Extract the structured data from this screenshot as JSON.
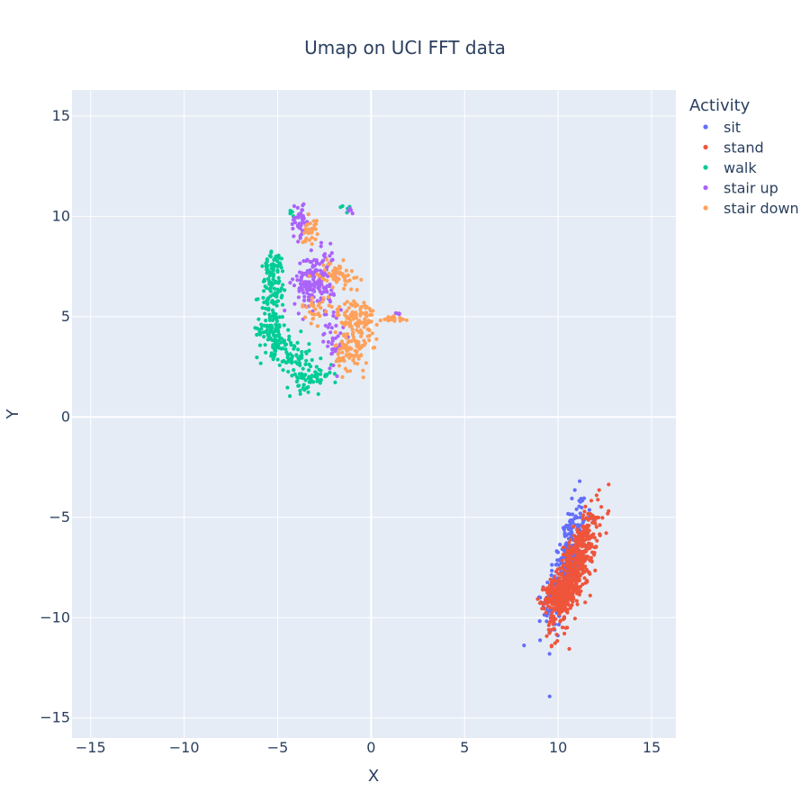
{
  "chart_data": {
    "type": "scatter",
    "title": "Umap on UCI  FFT data",
    "xlabel": "X",
    "ylabel": "Y",
    "xlim": [
      -16,
      16.3
    ],
    "ylim": [
      -16,
      16.3
    ],
    "xticks": [
      -15,
      -10,
      -5,
      0,
      5,
      10,
      15
    ],
    "yticks": [
      -15,
      -10,
      -5,
      0,
      5,
      10,
      15
    ],
    "xtick_labels": [
      "−15",
      "−10",
      "−5",
      "0",
      "5",
      "10",
      "15"
    ],
    "ytick_labels": [
      "−15",
      "−10",
      "−5",
      "0",
      "5",
      "10",
      "15"
    ],
    "grid": true,
    "legend": {
      "title": "Activity",
      "placement": "right"
    },
    "series": [
      {
        "name": "sit",
        "color": "#636efa",
        "clusters": [
          {
            "cx": 10.4,
            "cy": -7.4,
            "sx": 0.55,
            "sy": 1.6,
            "rho": 0.7,
            "n": 320
          }
        ]
      },
      {
        "name": "stand",
        "color": "#EF553B",
        "clusters": [
          {
            "cx": 10.9,
            "cy": -7.6,
            "sx": 0.6,
            "sy": 1.35,
            "rho": 0.75,
            "n": 520
          },
          {
            "cx": 10.0,
            "cy": -8.9,
            "sx": 0.35,
            "sy": 0.45,
            "rho": 0.2,
            "n": 200
          }
        ]
      },
      {
        "name": "walk",
        "color": "#00cc96",
        "clusters": [
          {
            "cx": -5.2,
            "cy": 6.6,
            "sx": 0.35,
            "sy": 0.8,
            "rho": 0.3,
            "n": 90
          },
          {
            "cx": -5.3,
            "cy": 4.4,
            "sx": 0.4,
            "sy": 0.6,
            "rho": 0.0,
            "n": 90
          },
          {
            "cx": -4.3,
            "cy": 3.2,
            "sx": 0.5,
            "sy": 0.5,
            "rho": -0.3,
            "n": 70
          },
          {
            "cx": -3.3,
            "cy": 2.0,
            "sx": 0.6,
            "sy": 0.35,
            "rho": 0.2,
            "n": 70
          },
          {
            "cx": -5.4,
            "cy": 7.5,
            "sx": 0.3,
            "sy": 0.3,
            "rho": 0.0,
            "n": 20
          },
          {
            "cx": -1.3,
            "cy": 10.4,
            "sx": 0.15,
            "sy": 0.1,
            "rho": 0.0,
            "n": 6
          },
          {
            "cx": -4.2,
            "cy": 10.1,
            "sx": 0.1,
            "sy": 0.1,
            "rho": 0.0,
            "n": 5
          }
        ]
      },
      {
        "name": "stair up",
        "color": "#ab63fa",
        "clusters": [
          {
            "cx": -3.8,
            "cy": 9.8,
            "sx": 0.25,
            "sy": 0.45,
            "rho": 0.0,
            "n": 50
          },
          {
            "cx": -3.0,
            "cy": 6.8,
            "sx": 0.55,
            "sy": 0.7,
            "rho": 0.1,
            "n": 180
          },
          {
            "cx": -2.0,
            "cy": 4.0,
            "sx": 0.3,
            "sy": 0.8,
            "rho": 0.0,
            "n": 40
          },
          {
            "cx": -1.1,
            "cy": 10.3,
            "sx": 0.08,
            "sy": 0.08,
            "rho": 0.0,
            "n": 5
          },
          {
            "cx": 1.4,
            "cy": 5.1,
            "sx": 0.08,
            "sy": 0.05,
            "rho": 0.0,
            "n": 4
          }
        ]
      },
      {
        "name": "stair down",
        "color": "#FFA15A",
        "clusters": [
          {
            "cx": -3.3,
            "cy": 9.4,
            "sx": 0.2,
            "sy": 0.4,
            "rho": 0.0,
            "n": 30
          },
          {
            "cx": -1.8,
            "cy": 7.1,
            "sx": 0.5,
            "sy": 0.3,
            "rho": 0.0,
            "n": 60
          },
          {
            "cx": -0.8,
            "cy": 4.9,
            "sx": 0.5,
            "sy": 0.5,
            "rho": 0.0,
            "n": 110
          },
          {
            "cx": -1.0,
            "cy": 3.3,
            "sx": 0.45,
            "sy": 0.5,
            "rho": 0.0,
            "n": 90
          },
          {
            "cx": 1.2,
            "cy": 4.9,
            "sx": 0.3,
            "sy": 0.1,
            "rho": 0.0,
            "n": 20
          },
          {
            "cx": -2.9,
            "cy": 5.4,
            "sx": 0.4,
            "sy": 0.3,
            "rho": 0.0,
            "n": 30
          }
        ]
      }
    ]
  }
}
